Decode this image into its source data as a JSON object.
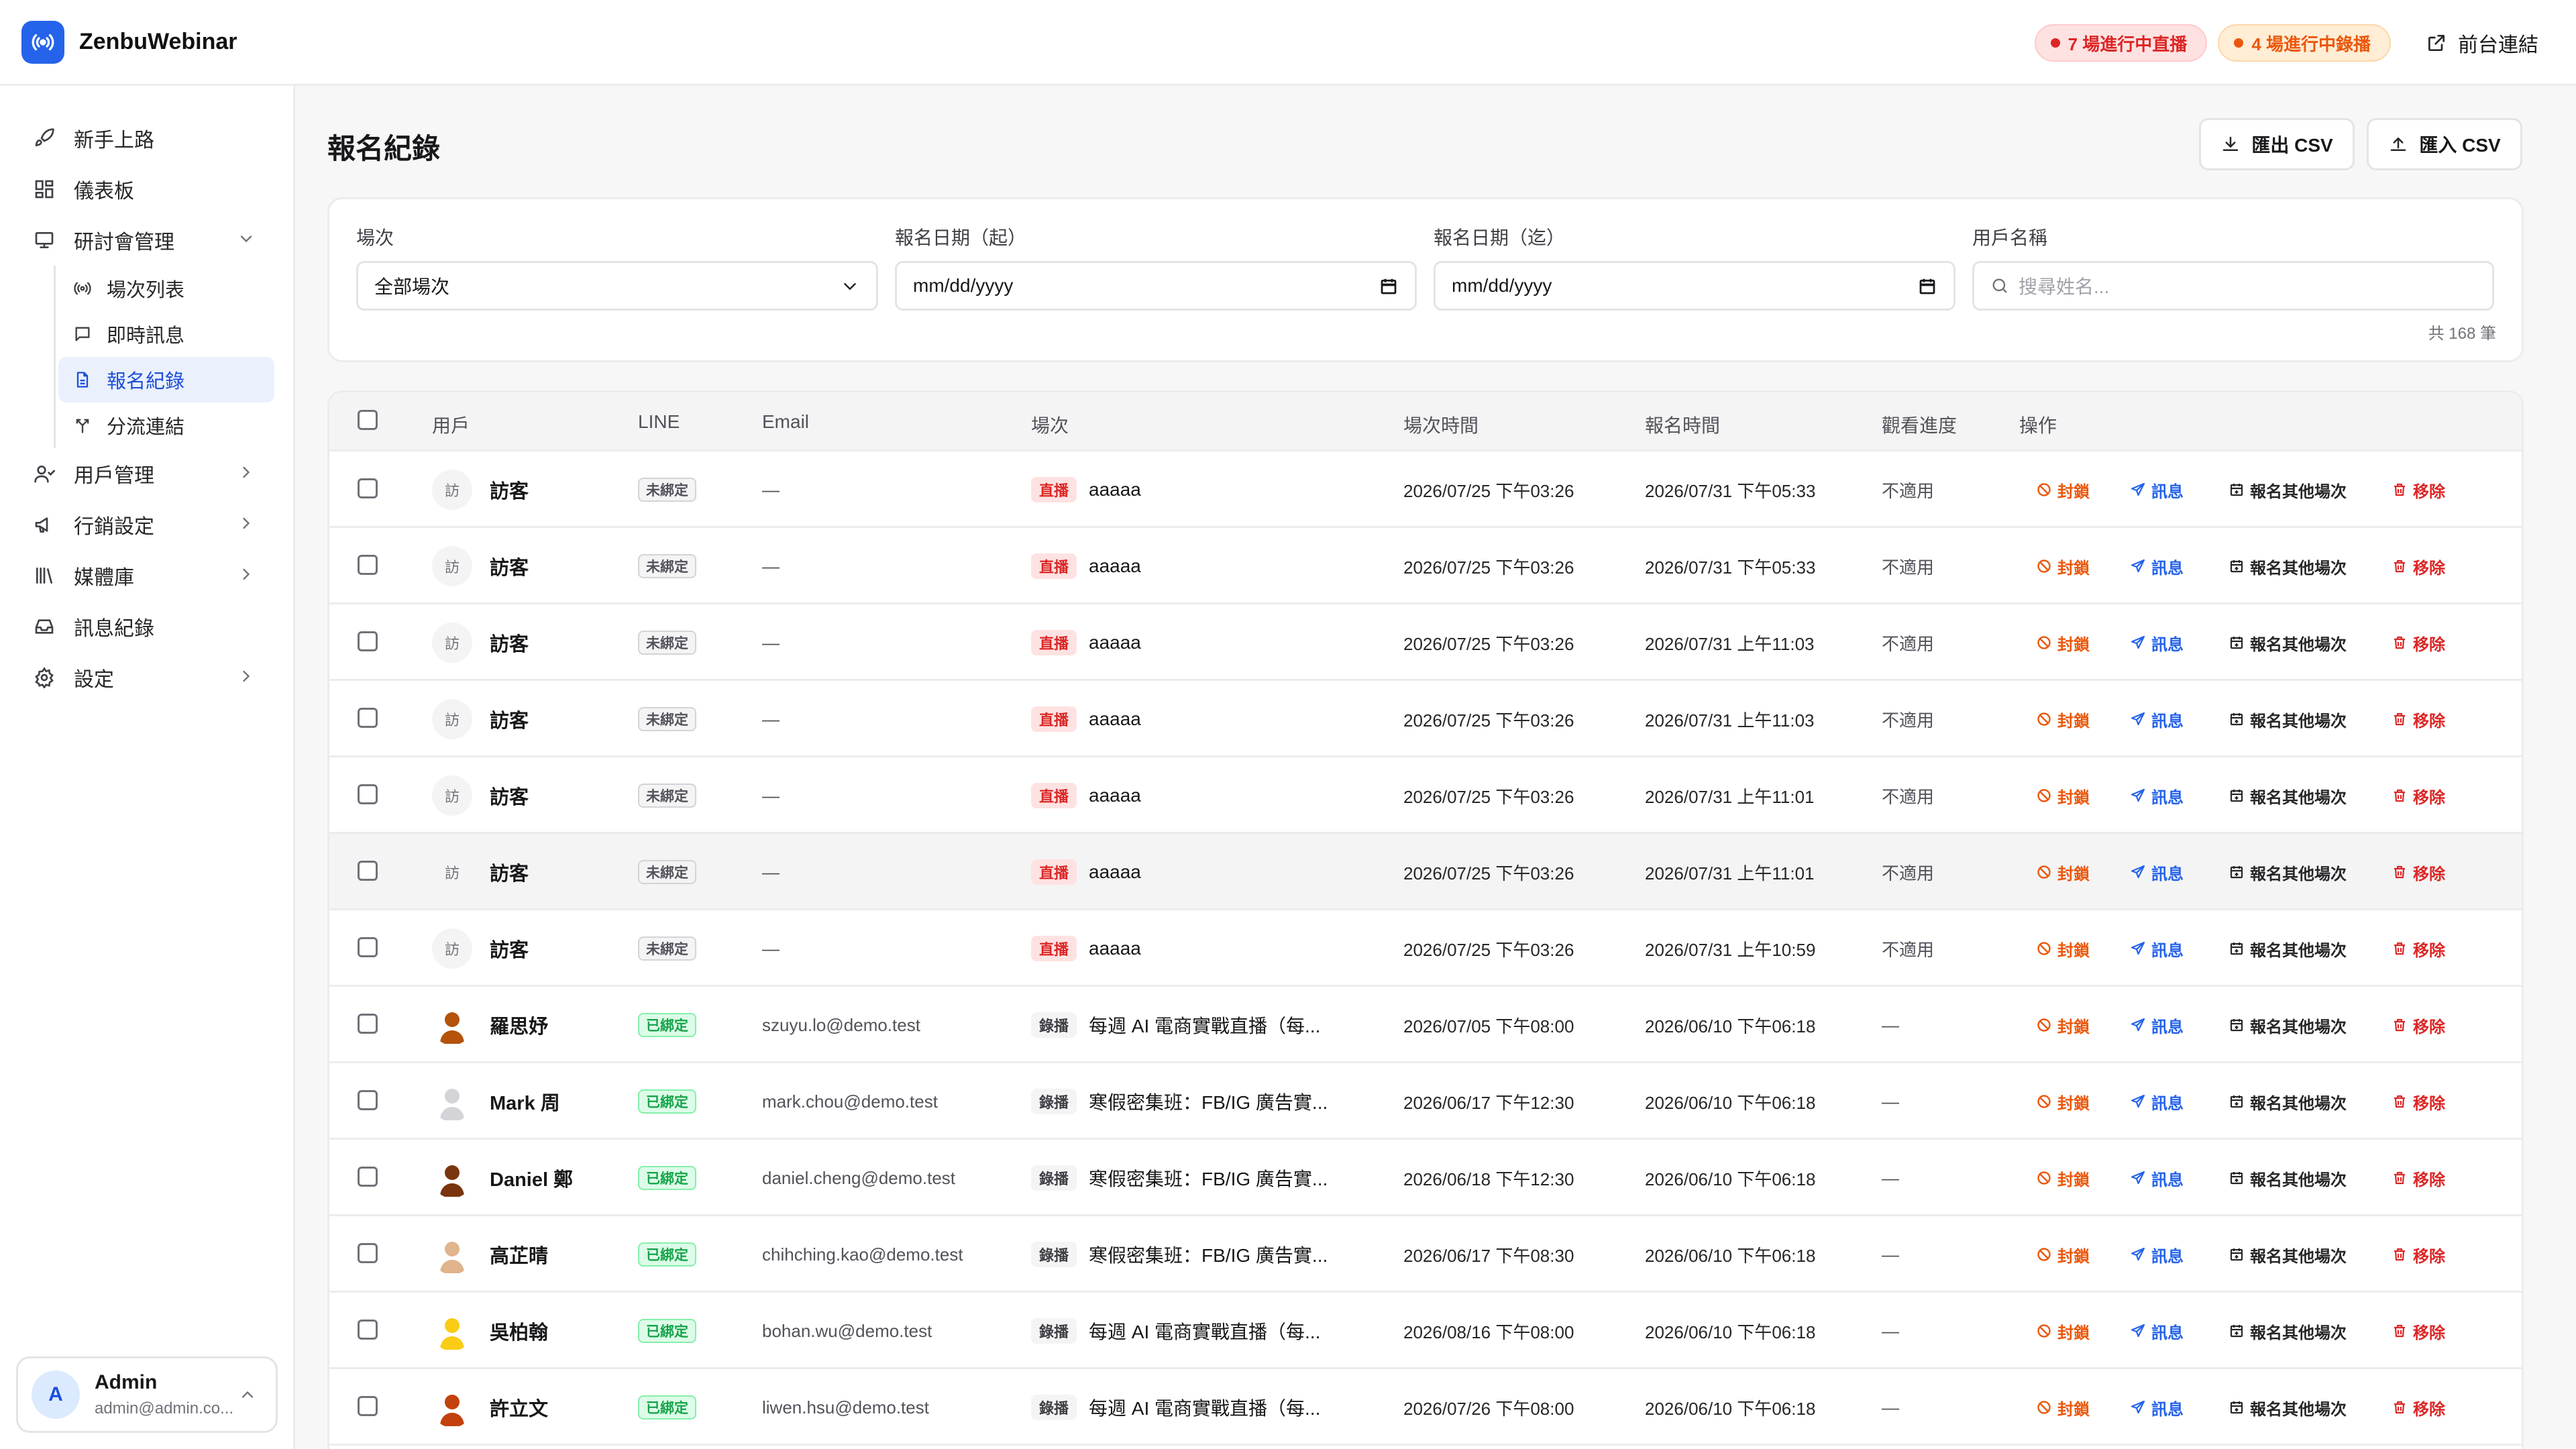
{
  "app": {
    "name": "ZenbuWebinar"
  },
  "header": {
    "live_pill": "7 場進行中直播",
    "rec_pill": "4 場進行中錄播",
    "front_link": "前台連結"
  },
  "sidebar": {
    "items": [
      {
        "label": "新手上路",
        "icon": "rocket-icon"
      },
      {
        "label": "儀表板",
        "icon": "dashboard-icon"
      },
      {
        "label": "研討會管理",
        "icon": "presentation-icon",
        "expanded": true
      }
    ],
    "sub_items": [
      {
        "label": "場次列表",
        "icon": "broadcast-icon"
      },
      {
        "label": "即時訊息",
        "icon": "chat-icon"
      },
      {
        "label": "報名紀錄",
        "icon": "document-icon",
        "active": true
      },
      {
        "label": "分流連結",
        "icon": "split-icon"
      }
    ],
    "items_after": [
      {
        "label": "用戶管理",
        "icon": "users-icon",
        "has_children": true
      },
      {
        "label": "行銷設定",
        "icon": "megaphone-icon",
        "has_children": true
      },
      {
        "label": "媒體庫",
        "icon": "library-icon",
        "has_children": true
      },
      {
        "label": "訊息紀錄",
        "icon": "inbox-icon",
        "has_children": false
      },
      {
        "label": "設定",
        "icon": "gear-icon",
        "has_children": true
      }
    ],
    "user": {
      "initial": "A",
      "name": "Admin",
      "email": "admin@admin.co..."
    }
  },
  "page": {
    "title": "報名紀錄",
    "export_label": "匯出 CSV",
    "import_label": "匯入 CSV"
  },
  "filters": {
    "session_label": "場次",
    "session_value": "全部場次",
    "date_from_label": "報名日期（起）",
    "date_from_value": "mm/dd/yyyy",
    "date_to_label": "報名日期（迄）",
    "date_to_value": "mm/dd/yyyy",
    "user_label": "用戶名稱",
    "user_placeholder": "搜尋姓名...",
    "count": "共 168 筆"
  },
  "table": {
    "columns": [
      "用戶",
      "LINE",
      "Email",
      "場次",
      "場次時間",
      "報名時間",
      "觀看進度",
      "操作"
    ],
    "actions": {
      "ban": "封鎖",
      "message": "訊息",
      "register_other": "報名其他場次",
      "remove": "移除"
    },
    "rows": [
      {
        "avatar": "訪",
        "name": "訪客",
        "line": "未綁定",
        "bound": false,
        "email": "—",
        "type": "直播",
        "session": "aaaaa",
        "session_time": "2026/07/25 下午03:26",
        "reg_time": "2026/07/31 下午05:33",
        "progress": "不適用"
      },
      {
        "avatar": "訪",
        "name": "訪客",
        "line": "未綁定",
        "bound": false,
        "email": "—",
        "type": "直播",
        "session": "aaaaa",
        "session_time": "2026/07/25 下午03:26",
        "reg_time": "2026/07/31 下午05:33",
        "progress": "不適用"
      },
      {
        "avatar": "訪",
        "name": "訪客",
        "line": "未綁定",
        "bound": false,
        "email": "—",
        "type": "直播",
        "session": "aaaaa",
        "session_time": "2026/07/25 下午03:26",
        "reg_time": "2026/07/31 上午11:03",
        "progress": "不適用"
      },
      {
        "avatar": "訪",
        "name": "訪客",
        "line": "未綁定",
        "bound": false,
        "email": "—",
        "type": "直播",
        "session": "aaaaa",
        "session_time": "2026/07/25 下午03:26",
        "reg_time": "2026/07/31 上午11:03",
        "progress": "不適用"
      },
      {
        "avatar": "訪",
        "name": "訪客",
        "line": "未綁定",
        "bound": false,
        "email": "—",
        "type": "直播",
        "session": "aaaaa",
        "session_time": "2026/07/25 下午03:26",
        "reg_time": "2026/07/31 上午11:01",
        "progress": "不適用"
      },
      {
        "avatar": "訪",
        "name": "訪客",
        "line": "未綁定",
        "bound": false,
        "email": "—",
        "type": "直播",
        "session": "aaaaa",
        "session_time": "2026/07/25 下午03:26",
        "reg_time": "2026/07/31 上午11:01",
        "progress": "不適用",
        "hover": true
      },
      {
        "avatar": "訪",
        "name": "訪客",
        "line": "未綁定",
        "bound": false,
        "email": "—",
        "type": "直播",
        "session": "aaaaa",
        "session_time": "2026/07/25 下午03:26",
        "reg_time": "2026/07/31 上午10:59",
        "progress": "不適用"
      },
      {
        "avatar": "",
        "avatar_color": "#b45309",
        "name": "羅思妤",
        "line": "已綁定",
        "bound": true,
        "email": "szuyu.lo@demo.test",
        "type": "錄播",
        "session": "每週 AI 電商實戰直播（每...",
        "session_time": "2026/07/05 下午08:00",
        "reg_time": "2026/06/10 下午06:18",
        "progress": "—"
      },
      {
        "avatar": "",
        "avatar_color": "#d4d4d8",
        "name": "Mark 周",
        "line": "已綁定",
        "bound": true,
        "email": "mark.chou@demo.test",
        "type": "錄播",
        "session": "寒假密集班：FB/IG 廣告實...",
        "session_time": "2026/06/17 下午12:30",
        "reg_time": "2026/06/10 下午06:18",
        "progress": "—"
      },
      {
        "avatar": "",
        "avatar_color": "#78350f",
        "name": "Daniel 鄭",
        "line": "已綁定",
        "bound": true,
        "email": "daniel.cheng@demo.test",
        "type": "錄播",
        "session": "寒假密集班：FB/IG 廣告實...",
        "session_time": "2026/06/18 下午12:30",
        "reg_time": "2026/06/10 下午06:18",
        "progress": "—"
      },
      {
        "avatar": "",
        "avatar_color": "#e0b48c",
        "name": "高芷晴",
        "line": "已綁定",
        "bound": true,
        "email": "chihching.kao@demo.test",
        "type": "錄播",
        "session": "寒假密集班：FB/IG 廣告實...",
        "session_time": "2026/06/17 下午08:30",
        "reg_time": "2026/06/10 下午06:18",
        "progress": "—"
      },
      {
        "avatar": "",
        "avatar_color": "#facc15",
        "name": "吳柏翰",
        "line": "已綁定",
        "bound": true,
        "email": "bohan.wu@demo.test",
        "type": "錄播",
        "session": "每週 AI 電商實戰直播（每...",
        "session_time": "2026/08/16 下午08:00",
        "reg_time": "2026/06/10 下午06:18",
        "progress": "—"
      },
      {
        "avatar": "",
        "avatar_color": "#c2410c",
        "name": "許立文",
        "line": "已綁定",
        "bound": true,
        "email": "liwen.hsu@demo.test",
        "type": "錄播",
        "session": "每週 AI 電商實戰直播（每...",
        "session_time": "2026/07/26 下午08:00",
        "reg_time": "2026/06/10 下午06:18",
        "progress": "—"
      }
    ]
  }
}
